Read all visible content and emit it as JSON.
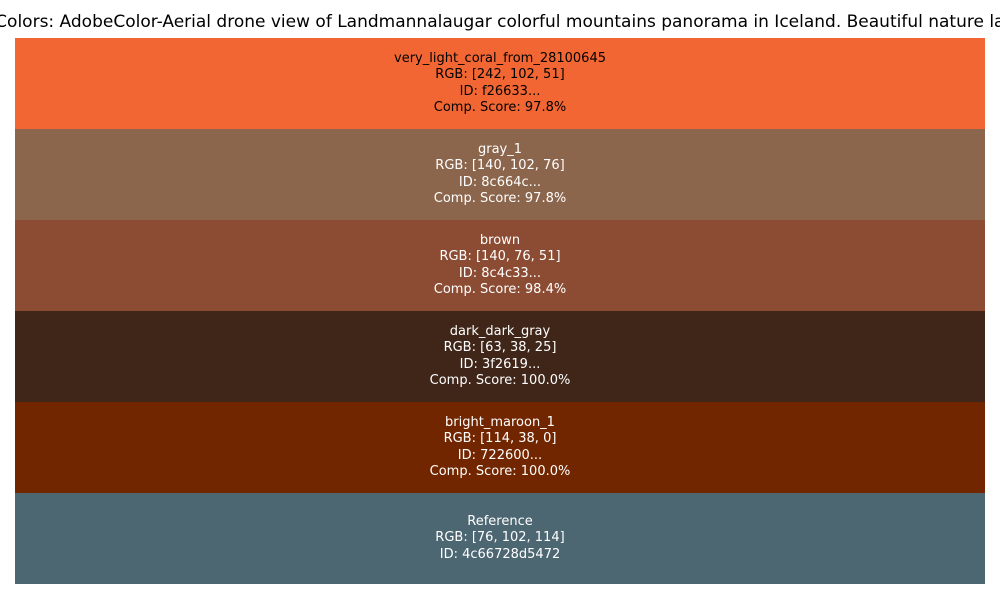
{
  "chart_data": {
    "type": "table",
    "title": "Primary Colors: AdobeColor-Aerial drone view of Landmannalaugar colorful mountains panorama in Iceland. Beautiful nature landscape",
    "rows": [
      {
        "name": "very_light_coral_from_28100645",
        "rgb_label": "RGB: [242, 102, 51]",
        "id_label": "ID: f26633...",
        "score_label": "Comp. Score: 97.8%",
        "color": "#f26633",
        "text_color": "#000000"
      },
      {
        "name": "gray_1",
        "rgb_label": "RGB: [140, 102, 76]",
        "id_label": "ID: 8c664c...",
        "score_label": "Comp. Score: 97.8%",
        "color": "#8c664c",
        "text_color": "#ffffff"
      },
      {
        "name": "brown",
        "rgb_label": "RGB: [140, 76, 51]",
        "id_label": "ID: 8c4c33...",
        "score_label": "Comp. Score: 98.4%",
        "color": "#8c4c33",
        "text_color": "#ffffff"
      },
      {
        "name": "dark_dark_gray",
        "rgb_label": "RGB: [63, 38, 25]",
        "id_label": "ID: 3f2619...",
        "score_label": "Comp. Score: 100.0%",
        "color": "#3f2619",
        "text_color": "#ffffff"
      },
      {
        "name": "bright_maroon_1",
        "rgb_label": "RGB: [114, 38, 0]",
        "id_label": "ID: 722600...",
        "score_label": "Comp. Score: 100.0%",
        "color": "#722600",
        "text_color": "#ffffff"
      },
      {
        "name": "Reference",
        "rgb_label": "RGB: [76, 102, 114]",
        "id_label": "ID: 4c66728d5472",
        "score_label": "",
        "color": "#4c6672",
        "text_color": "#ffffff"
      }
    ]
  }
}
